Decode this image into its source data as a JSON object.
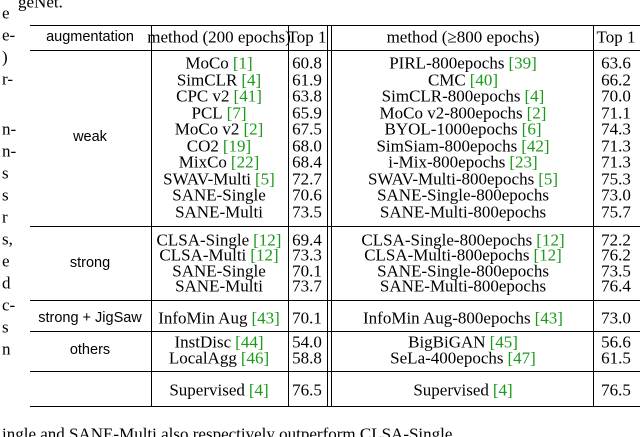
{
  "top_text": "geNet.",
  "left_fragments": [
    "e",
    "e-",
    ")",
    "r-",
    "n-",
    "n-",
    "s",
    "s",
    "r",
    "s,",
    "e",
    "d",
    "c-",
    "s",
    "n"
  ],
  "table": {
    "header": [
      "augmentation",
      "method (200 epochs)",
      "Top 1",
      "method (≥800 epochs)",
      "Top 1"
    ],
    "groups": [
      {
        "label": "weak",
        "rows": [
          {
            "m1": {
              "name": "MoCo",
              "cite": "[1]"
            },
            "t1": "60.8",
            "m2": {
              "name": "PIRL-800epochs",
              "cite": "[39]"
            },
            "t2": "63.6"
          },
          {
            "m1": {
              "name": "SimCLR",
              "cite": "[4]"
            },
            "t1": "61.9",
            "m2": {
              "name": "CMC",
              "cite": "[40]"
            },
            "t2": "66.2"
          },
          {
            "m1": {
              "name": "CPC v2",
              "cite": "[41]"
            },
            "t1": "63.8",
            "m2": {
              "name": "SimCLR-800epochs",
              "cite": "[4]"
            },
            "t2": "70.0"
          },
          {
            "m1": {
              "name": "PCL",
              "cite": "[7]"
            },
            "t1": "65.9",
            "m2": {
              "name": "MoCo v2-800epochs",
              "cite": "[2]"
            },
            "t2": "71.1"
          },
          {
            "m1": {
              "name": "MoCo v2",
              "cite": "[2]"
            },
            "t1": "67.5",
            "m2": {
              "name": "BYOL-1000epochs",
              "cite": "[6]"
            },
            "t2": "74.3"
          },
          {
            "m1": {
              "name": "CO2",
              "cite": "[19]"
            },
            "t1": "68.0",
            "m2": {
              "name": "SimSiam-800epochs",
              "cite": "[42]"
            },
            "t2": "71.3"
          },
          {
            "m1": {
              "name": "MixCo",
              "cite": "[22]"
            },
            "t1": "68.4",
            "m2": {
              "name": "i-Mix-800epochs",
              "cite": "[23]"
            },
            "t2": "71.3"
          },
          {
            "m1": {
              "name": "SWAV-Multi",
              "cite": "[5]"
            },
            "t1": "72.7",
            "m2": {
              "name": "SWAV-Multi-800epochs",
              "cite": "[5]"
            },
            "t2": "75.3"
          },
          {
            "m1": {
              "name": "SANE-Single"
            },
            "t1": "70.6",
            "m2": {
              "name": "SANE-Single-800epochs"
            },
            "t2": "73.0"
          },
          {
            "m1": {
              "name": "SANE-Multi"
            },
            "t1": "73.5",
            "m2": {
              "name": "SANE-Multi-800epochs"
            },
            "t2": "75.7"
          }
        ]
      },
      {
        "label": "strong",
        "rows": [
          {
            "m1": {
              "name": "CLSA-Single",
              "cite": "[12]"
            },
            "t1": "69.4",
            "m2": {
              "name": "CLSA-Single-800epochs",
              "cite": "[12]"
            },
            "t2": "72.2"
          },
          {
            "m1": {
              "name": "CLSA-Multi",
              "cite": "[12]"
            },
            "t1": "73.3",
            "m2": {
              "name": "CLSA-Multi-800epochs",
              "cite": "[12]"
            },
            "t2": "76.2"
          },
          {
            "m1": {
              "name": "SANE-Single"
            },
            "t1": "70.1",
            "m2": {
              "name": "SANE-Single-800epochs"
            },
            "t2": "73.5"
          },
          {
            "m1": {
              "name": "SANE-Multi"
            },
            "t1": "73.7",
            "m2": {
              "name": "SANE-Multi-800epochs"
            },
            "t2": "76.4"
          }
        ]
      },
      {
        "label": "strong + JigSaw",
        "rows": [
          {
            "m1": {
              "name": "InfoMin Aug",
              "cite": "[43]"
            },
            "t1": "70.1",
            "m2": {
              "name": "InfoMin Aug-800epochs",
              "cite": "[43]"
            },
            "t2": "73.0"
          }
        ]
      },
      {
        "label": "others",
        "rows": [
          {
            "m1": {
              "name": "InstDisc",
              "cite": "[44]"
            },
            "t1": "54.0",
            "m2": {
              "name": "BigBiGAN",
              "cite": "[45]"
            },
            "t2": "56.6"
          },
          {
            "m1": {
              "name": "LocalAgg",
              "cite": "[46]"
            },
            "t1": "58.8",
            "m2": {
              "name": "SeLa-400epochs",
              "cite": "[47]"
            },
            "t2": "61.5"
          }
        ]
      },
      {
        "rows": [
          {
            "m1": {
              "name": "Supervised",
              "cite": "[4]"
            },
            "t1": "76.5",
            "m2": {
              "name": "Supervised",
              "cite": "[4]"
            },
            "t2": "76.5"
          }
        ]
      }
    ]
  },
  "bottom_text": "ingle and SANE-Multi also respectively outperform CLSA-Single"
}
